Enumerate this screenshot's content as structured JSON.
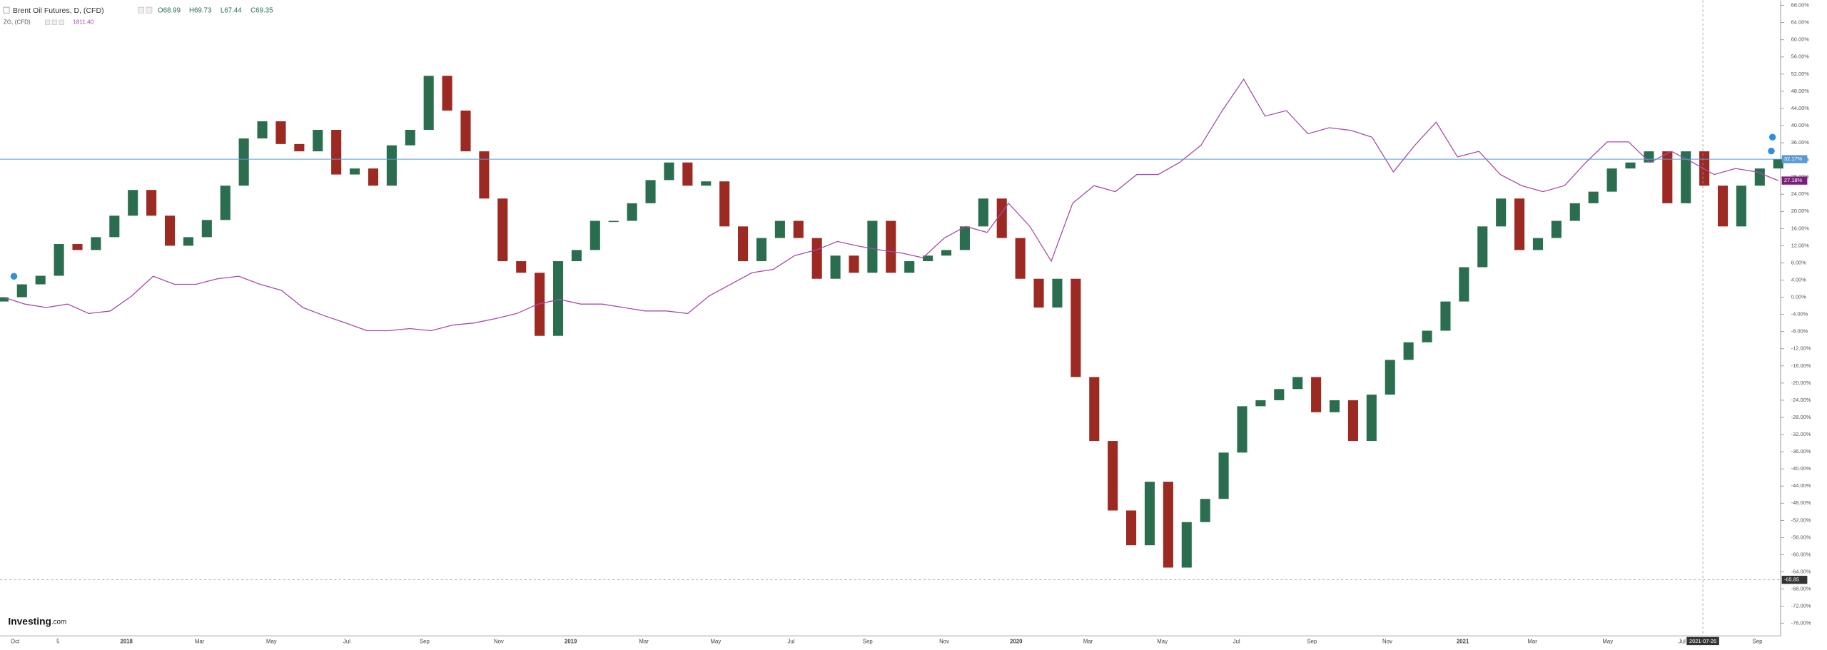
{
  "chart_data": {
    "type": "candlestick",
    "header": {
      "title": "Brent Oil Futures, D, (CFD)",
      "ohlc": [
        "O68.99",
        "H69.73",
        "L67.44",
        "C69.35"
      ],
      "compare_title": "ZG, (CFD)",
      "compare_value": "1811.40"
    },
    "logo": [
      "Investing",
      ".com"
    ],
    "x_axis_labels": [
      "Oct",
      "5",
      "2018",
      "Mar",
      "May",
      "Jul",
      "Sep",
      "Nov",
      "2019",
      "Mar",
      "May",
      "Jul",
      "Sep",
      "Nov",
      "2020",
      "Mar",
      "May",
      "Jul",
      "Sep",
      "Nov",
      "2021",
      "Mar",
      "May",
      "Jul",
      "Sep"
    ],
    "ylim": [
      -78.9,
      69.2
    ],
    "yticks": [
      {
        "value": 68,
        "label": "68.00%"
      },
      {
        "value": 64,
        "label": "64.00%"
      },
      {
        "value": 60,
        "label": "60.00%"
      },
      {
        "value": 56,
        "label": "56.00%"
      },
      {
        "value": 52,
        "label": "52.00%"
      },
      {
        "value": 48,
        "label": "48.00%"
      },
      {
        "value": 44,
        "label": "44.00%"
      },
      {
        "value": 40,
        "label": "40.00%"
      },
      {
        "value": 36,
        "label": "36.00%"
      },
      {
        "value": 32,
        "label": "32.00%"
      },
      {
        "value": 28,
        "label": "28.00%"
      },
      {
        "value": 24,
        "label": "24.00%"
      },
      {
        "value": 20,
        "label": "20.00%"
      },
      {
        "value": 16,
        "label": "16.00%"
      },
      {
        "value": 12,
        "label": "12.00%"
      },
      {
        "value": 8,
        "label": "8.00%"
      },
      {
        "value": 4,
        "label": "4.00%"
      },
      {
        "value": 0,
        "label": "0.00%"
      },
      {
        "value": -4,
        "label": "-4.00%"
      },
      {
        "value": -8,
        "label": "-8.00%"
      },
      {
        "value": -12,
        "label": "-12.00%"
      },
      {
        "value": -16,
        "label": "-16.00%"
      },
      {
        "value": -20,
        "label": "-20.00%"
      },
      {
        "value": -24,
        "label": "-24.00%"
      },
      {
        "value": -28,
        "label": "-28.00%"
      },
      {
        "value": -32,
        "label": "-32.00%"
      },
      {
        "value": -36,
        "label": "-36.00%"
      },
      {
        "value": -40,
        "label": "-40.00%"
      },
      {
        "value": -44,
        "label": "-44.00%"
      },
      {
        "value": -48,
        "label": "-48.00%"
      },
      {
        "value": -52,
        "label": "-52.00%"
      },
      {
        "value": -56,
        "label": "-56.00%"
      },
      {
        "value": -60,
        "label": "-60.00%"
      },
      {
        "value": -64,
        "label": "-64.00%"
      },
      {
        "value": -68,
        "label": "-68.00%"
      },
      {
        "value": -72,
        "label": "-72.00%"
      },
      {
        "value": -76,
        "label": "-76.00%"
      }
    ],
    "series": [
      {
        "type": "candlestick",
        "up_color": "#2b6e4f",
        "down_color": "#9c2a22",
        "line_color": "#5b9bd5",
        "last_label": "32.17%",
        "open": [
          -1,
          0,
          3,
          5,
          12.4,
          11,
          14,
          19,
          25,
          19,
          12,
          14,
          18,
          26,
          37,
          41,
          35.7,
          34,
          39,
          28.6,
          30,
          26,
          35.4,
          39,
          51.6,
          43.5,
          34,
          23,
          8.4,
          5.7,
          -9,
          8.4,
          11,
          17.8,
          17.8,
          21.9,
          27.3,
          31.4,
          26,
          27,
          16.5,
          8.4,
          13.8,
          17.8,
          13.8,
          4.3,
          9.7,
          5.7,
          17.8,
          5.7,
          8.4,
          9.7,
          11,
          16.5,
          23,
          13.8,
          4.3,
          -2.4,
          4.3,
          -18.6,
          -33.5,
          -49.7,
          -57.8,
          -43,
          -63,
          -52.4,
          -47,
          -36.2,
          -25.4,
          -24,
          -21.4,
          -18.6,
          -26.8,
          -24,
          -33.5,
          -22.7,
          -14.6,
          -10.5,
          -7.8,
          -1,
          7,
          16.5,
          23,
          11,
          13.8,
          17.8,
          21.9,
          24.6,
          30,
          31.4,
          34,
          21.9,
          34,
          26,
          16.5,
          26,
          30
        ],
        "values": [
          0,
          3,
          5,
          12.4,
          11,
          14,
          19,
          25,
          19,
          12,
          14,
          18,
          26,
          37,
          41,
          35.7,
          34,
          39,
          28.6,
          30,
          26,
          35.4,
          39,
          51.6,
          43.5,
          34,
          23,
          8.4,
          5.7,
          -9,
          8.4,
          11,
          17.8,
          17.8,
          21.9,
          27.3,
          31.4,
          26,
          27,
          16.5,
          8.4,
          13.8,
          17.8,
          13.8,
          4.3,
          9.7,
          5.7,
          17.8,
          5.7,
          8.4,
          9.7,
          11,
          16.5,
          23,
          13.8,
          4.3,
          -2.4,
          4.3,
          -18.6,
          -33.5,
          -49.7,
          -57.8,
          -43,
          -63,
          -52.4,
          -47,
          -36.2,
          -25.4,
          -24,
          -21.4,
          -18.6,
          -26.8,
          -24,
          -33.5,
          -22.7,
          -14.6,
          -10.5,
          -7.8,
          -1,
          7,
          16.5,
          23,
          11,
          13.8,
          17.8,
          21.9,
          24.6,
          30,
          31.4,
          34,
          21.9,
          34,
          26,
          16.5,
          26,
          30,
          32.17
        ]
      },
      {
        "type": "line",
        "color": "#a64ca6",
        "label_color": "#7b1f7b",
        "last_label": "27.18%",
        "values": [
          0,
          -1.6,
          -2.4,
          -1.6,
          -3.8,
          -3.2,
          0.3,
          4.9,
          3,
          3,
          4.3,
          4.9,
          3,
          1.6,
          -2.4,
          -4.3,
          -6,
          -7.8,
          -7.8,
          -7.3,
          -7.8,
          -6.5,
          -6,
          -5,
          -3.8,
          -1.6,
          -0.5,
          -1.6,
          -1.6,
          -2.4,
          -3.2,
          -3.2,
          -3.8,
          0.3,
          3,
          5.7,
          6.5,
          9.7,
          11,
          13,
          11.9,
          11,
          10.3,
          9.2,
          13.8,
          16.5,
          15.1,
          21.9,
          16.5,
          8.4,
          21.9,
          26,
          24.6,
          28.6,
          28.6,
          31.4,
          35.4,
          43.5,
          50.8,
          42.2,
          43.5,
          38.1,
          39.5,
          38.9,
          37.3,
          29.2,
          35.4,
          40.8,
          32.7,
          34,
          28.6,
          26,
          24.6,
          26,
          31.4,
          36.2,
          36.2,
          31.4,
          34,
          31.4,
          28.6,
          30,
          29.2,
          27.18
        ]
      }
    ],
    "crosshair": {
      "value": -65.85,
      "label": "-65.85",
      "date": "2021-07-26"
    }
  }
}
